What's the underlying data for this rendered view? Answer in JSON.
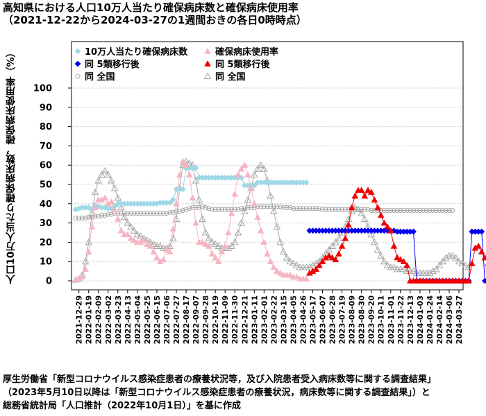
{
  "header": {
    "title": "高知県における人口10万人当たり確保病床数と確保病床使用率",
    "subtitle": "（2021-12-22から2024-03-27の1週間おきの各日0時時点）"
  },
  "source_lines": [
    "厚生労働省「新型コロナウイルス感染症患者の療養状況等，及び入院患者受入病床数等に関する調査結果」",
    "（2023年5月10日以降は「新型コロナウイルス感染症患者の療養状況，病床数等に関する調査結果」）と",
    "総務省統計局「人口推計（2022年10月1日）」を基に作成"
  ],
  "colors": {
    "beds_pre": "#9fd8e6",
    "beds_post": "#0000ee",
    "rate_pre": "#f4b6c2",
    "rate_post": "#ee0000",
    "national": "#a6a6a6",
    "grid": "#cccccc"
  },
  "chart_data": {
    "type": "scatter",
    "title": "高知県における人口10万人当たり確保病床数と確保病床使用率",
    "subtitle": "（2021-12-22から2024-03-27の1週間おきの各日0時時点）",
    "ylabel": "人口10万人当たり確保病床数，確保病床使用率（%）",
    "xlabel": "",
    "ylim": [
      0,
      100
    ],
    "yticks": [
      0,
      10,
      20,
      30,
      40,
      50,
      60,
      70,
      80,
      90,
      100
    ],
    "grid": true,
    "legend_position": "top-left",
    "x_start": "2021-12-22",
    "x_end": "2024-03-27",
    "xtick_labels": [
      "2021-12-29",
      "2022-01-19",
      "2022-02-09",
      "2022-03-02",
      "2022-03-23",
      "2022-04-13",
      "2022-05-04",
      "2022-05-25",
      "2022-06-15",
      "2022-07-06",
      "2022-07-27",
      "2022-08-17",
      "2022-09-07",
      "2022-09-28",
      "2022-10-19",
      "2022-11-09",
      "2022-11-30",
      "2022-12-21",
      "2023-01-11",
      "2023-02-01",
      "2023-02-22",
      "2023-03-15",
      "2023-04-05",
      "2023-04-26",
      "2023-05-17",
      "2023-06-07",
      "2023-06-28",
      "2023-07-19",
      "2023-08-09",
      "2023-08-30",
      "2023-09-20",
      "2023-10-11",
      "2023-11-01",
      "2023-11-22",
      "2023-12-13",
      "2024-01-03",
      "2024-01-24",
      "2024-02-14",
      "2024-03-06",
      "2024-03-27"
    ],
    "legend": [
      {
        "key": "beds_pre",
        "label": "10万人当たり確保病床数",
        "marker": "diamond",
        "color": "#9fd8e6"
      },
      {
        "key": "beds_post",
        "label": "同 5類移行後",
        "marker": "diamond",
        "color": "#0000ee"
      },
      {
        "key": "beds_nat",
        "label": "同 全国",
        "marker": "open-circle",
        "color": "#a6a6a6"
      },
      {
        "key": "rate_pre",
        "label": "確保病床使用率",
        "marker": "triangle",
        "color": "#f4b6c2"
      },
      {
        "key": "rate_post",
        "label": "同 5類移行後",
        "marker": "triangle",
        "color": "#ee0000"
      },
      {
        "key": "rate_nat",
        "label": "同 全国",
        "marker": "open-triangle",
        "color": "#a6a6a6"
      }
    ],
    "series": [
      {
        "key": "beds_pre",
        "start": "2021-12-22",
        "values": [
          37,
          37.5,
          38,
          38,
          38,
          37,
          39,
          38.5,
          38,
          38,
          37.5,
          37.5,
          38.5,
          40,
          40,
          40,
          40,
          40,
          40,
          40,
          40,
          40,
          40,
          40,
          40,
          40,
          40.5,
          40.5,
          40.5,
          40.5,
          42,
          47.5,
          47.5,
          47.5,
          58.5,
          58.5,
          58.5,
          58.5,
          53.5,
          53.5,
          53.5,
          53.5,
          53.5,
          53.5,
          53.5,
          53.5,
          53.5,
          53.5,
          53.5,
          53.5,
          53.5,
          53.5,
          49.5,
          49.5,
          49.5,
          49.5,
          51,
          51,
          51,
          51,
          51,
          51,
          51,
          51,
          51,
          51,
          51,
          51,
          51,
          51,
          51,
          51
        ]
      },
      {
        "key": "beds_post",
        "start": "2023-05-10",
        "values": [
          26,
          26,
          26,
          26,
          26,
          26,
          26,
          26,
          26,
          26,
          26,
          26,
          26,
          26,
          26,
          26,
          26,
          26,
          26,
          26,
          26,
          26,
          26,
          26,
          26,
          26,
          26,
          25.5,
          25.5,
          25.5,
          25.5,
          25.5,
          25.5,
          0,
          0,
          0,
          0,
          0,
          0,
          0,
          0,
          0,
          0,
          0,
          0,
          0,
          0,
          0,
          0,
          0,
          25.5,
          25.5,
          25.5,
          25.5,
          0,
          0,
          0,
          0,
          0,
          0
        ]
      },
      {
        "key": "beds_nat",
        "start": "2021-12-22",
        "values": [
          32.5,
          32.5,
          32.5,
          32.5,
          33,
          33,
          33.5,
          33.5,
          34,
          34,
          34.5,
          34.5,
          35,
          35,
          35,
          35,
          35,
          35,
          35,
          35,
          35,
          35,
          35,
          35,
          35,
          35,
          35,
          35,
          35,
          35.5,
          35.5,
          36,
          36,
          36.5,
          37,
          37.5,
          38,
          38,
          38,
          38.5,
          38,
          37.5,
          37,
          37,
          37,
          37,
          37,
          37,
          37,
          37,
          37,
          37.5,
          37.5,
          38,
          38,
          38,
          38.5,
          38.5,
          38.5,
          38.5,
          38.5,
          38.5,
          38.5,
          38.5,
          38,
          38,
          38,
          37.5,
          37.5,
          37.5,
          37.5,
          37.5,
          37.5,
          37.5,
          37.5,
          37.5,
          37,
          37,
          37,
          37,
          37,
          37,
          37,
          37,
          37,
          37,
          37,
          37,
          37,
          37,
          37,
          36.5,
          36.5,
          36.5,
          36.5,
          36.5,
          36.5,
          36.5,
          36.5,
          36.5,
          36.5,
          36.5,
          36.5,
          36.5,
          36.5,
          36.5,
          36.5,
          36.5,
          36.5,
          36.5,
          36.5,
          36.5,
          36.5,
          36.5,
          36.5,
          36.5,
          36.5
        ]
      },
      {
        "key": "rate_pre",
        "start": "2021-12-22",
        "values": [
          0.5,
          1,
          2,
          6,
          15,
          28,
          38,
          42,
          42,
          43,
          40,
          41,
          37,
          32,
          26,
          24,
          24,
          22,
          21,
          20,
          20,
          21,
          19,
          18,
          15,
          12,
          10,
          11,
          16,
          15,
          27,
          40,
          55,
          62,
          60,
          55,
          43,
          30,
          20,
          20,
          19,
          18,
          14,
          12,
          10,
          15,
          18,
          25,
          35,
          45,
          55,
          58,
          60,
          55,
          48,
          40,
          33,
          26,
          20,
          14,
          10,
          7,
          5,
          4,
          3,
          3,
          3,
          2,
          2,
          1,
          1,
          1
        ]
      },
      {
        "key": "rate_post",
        "start": "2023-05-10",
        "values": [
          4,
          5,
          6,
          8,
          10,
          12,
          13,
          12,
          11,
          14,
          18,
          22,
          29,
          38,
          44,
          47,
          47,
          44,
          47,
          46,
          42,
          38,
          34,
          30,
          28,
          26,
          18,
          12,
          11,
          10,
          8,
          0,
          0,
          0,
          0,
          0,
          0,
          0,
          0,
          0,
          0,
          0,
          0,
          0,
          0,
          0,
          0,
          0,
          0,
          0,
          9,
          17,
          18,
          15,
          12,
          9,
          0,
          0,
          0,
          0
        ]
      },
      {
        "key": "rate_nat",
        "start": "2021-12-22",
        "values": [
          0.5,
          1,
          3,
          10,
          20,
          35,
          46,
          52,
          55,
          57,
          55,
          52,
          48,
          43,
          38,
          33,
          30,
          28,
          26,
          24,
          23,
          22,
          21,
          20,
          19,
          18,
          18,
          17,
          17,
          18,
          22,
          32,
          48,
          60,
          62,
          61,
          60,
          52,
          42,
          32,
          25,
          22,
          20,
          19,
          18,
          17,
          17,
          17,
          18,
          20,
          25,
          30,
          36,
          42,
          48,
          55,
          58,
          60,
          58,
          52,
          44,
          36,
          28,
          20,
          15,
          12,
          10,
          9,
          8,
          7,
          7,
          7,
          7,
          8,
          9,
          10,
          12,
          14,
          16,
          18,
          20,
          22,
          25,
          28,
          32,
          36,
          38,
          37,
          35,
          32,
          28,
          24,
          20,
          16,
          13,
          10,
          8,
          7,
          7,
          6,
          6,
          6,
          5,
          5,
          5,
          4,
          4,
          4,
          4,
          4,
          5,
          6,
          8,
          10,
          12,
          13,
          13,
          12,
          10,
          9,
          8,
          7
        ]
      }
    ]
  }
}
